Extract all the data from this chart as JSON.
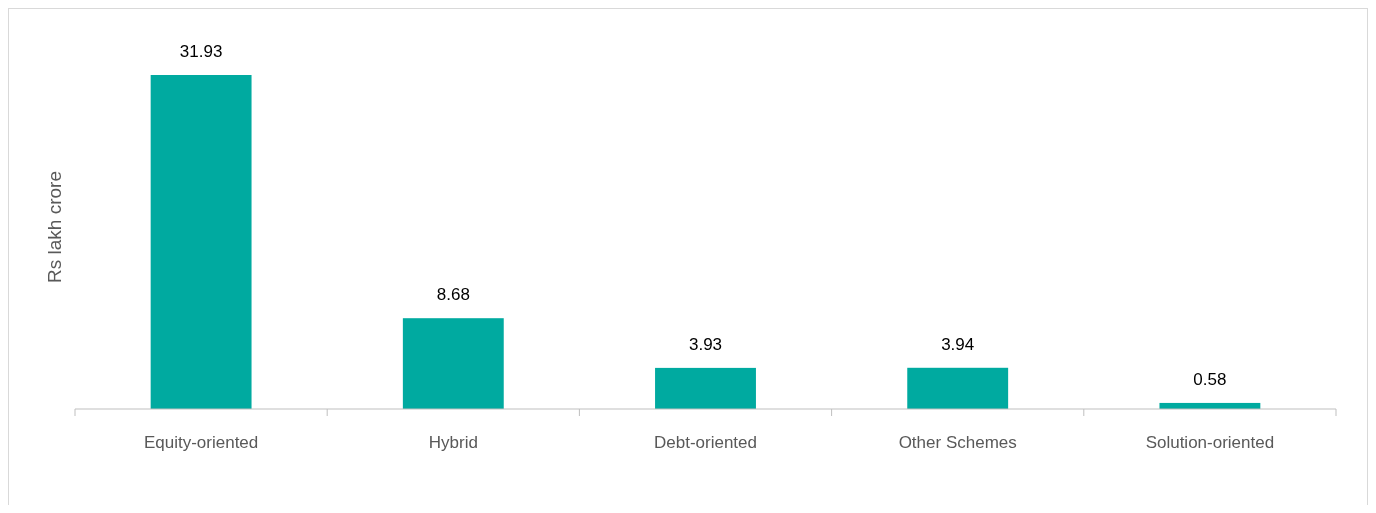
{
  "chart_data": {
    "type": "bar",
    "ylabel": "Rs lakh crore",
    "categories": [
      "Equity-oriented",
      "Hybrid",
      "Debt-oriented",
      "Other Schemes",
      "Solution-oriented"
    ],
    "values": [
      31.93,
      8.68,
      3.93,
      3.94,
      0.58
    ],
    "color": "#00aaa0",
    "data_labels": true
  }
}
